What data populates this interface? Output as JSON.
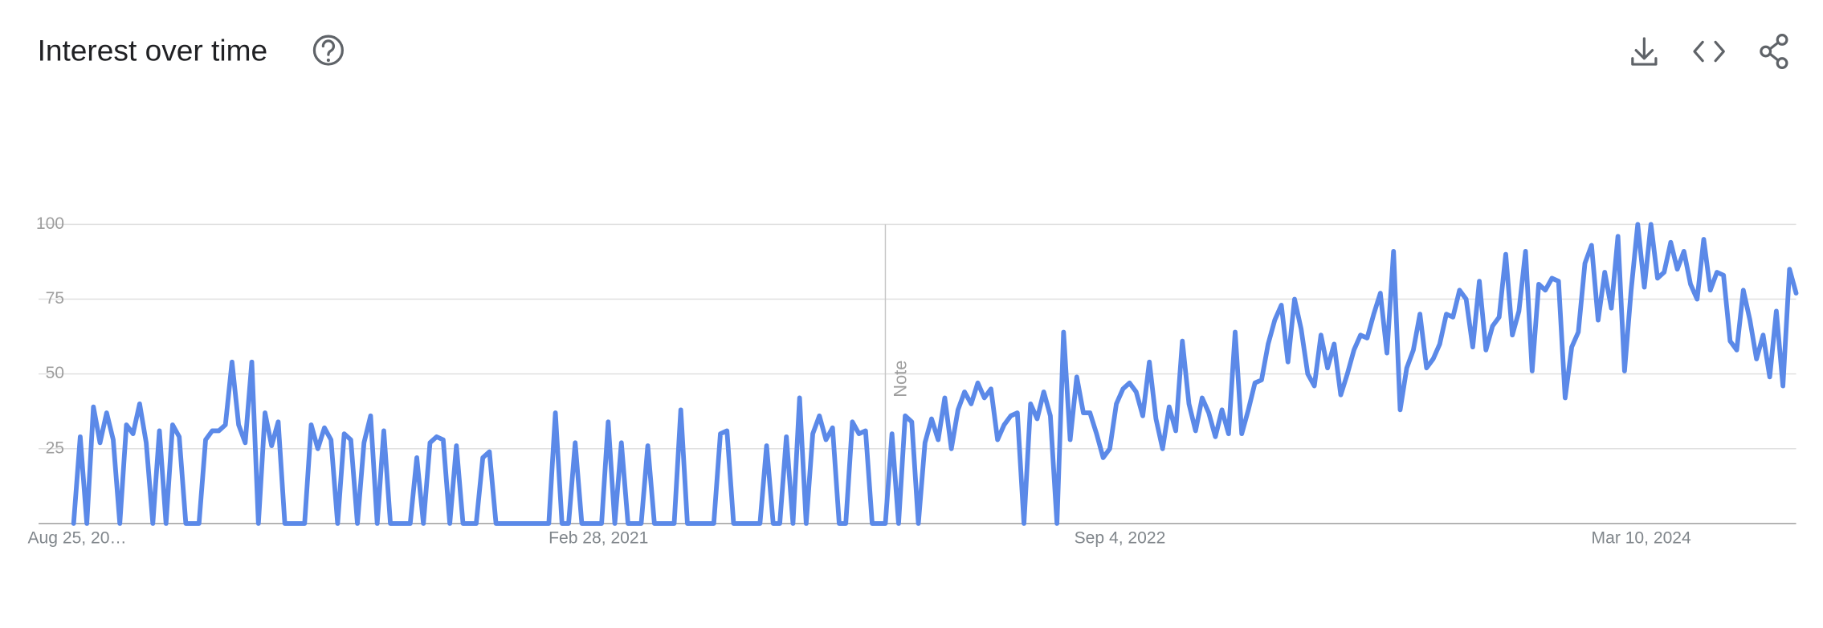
{
  "chart_data": {
    "type": "line",
    "title": "Interest over time",
    "annotation": "Note",
    "categories": [
      "Aug 25, 20…",
      null,
      null,
      null,
      null,
      null,
      null,
      null,
      null,
      null,
      null,
      null,
      null,
      null,
      null,
      null,
      null,
      null,
      null,
      null,
      null,
      null,
      null,
      null,
      null,
      null,
      null,
      null,
      null,
      null,
      null,
      null,
      null,
      null,
      null,
      null,
      null,
      null,
      null,
      null,
      null,
      null,
      null,
      null,
      null,
      null,
      null,
      null,
      null,
      null,
      null,
      null,
      null,
      null,
      null,
      null,
      null,
      null,
      null,
      null,
      null,
      null,
      null,
      null,
      null,
      null,
      null,
      null,
      null,
      null,
      null,
      null,
      null,
      null,
      null,
      null,
      null,
      null,
      null,
      "Feb 28, 2021",
      null,
      null,
      null,
      null,
      null,
      null,
      null,
      null,
      null,
      null,
      null,
      null,
      null,
      null,
      null,
      null,
      null,
      null,
      null,
      null,
      null,
      null,
      null,
      null,
      null,
      null,
      null,
      null,
      null,
      null,
      null,
      null,
      null,
      null,
      null,
      null,
      null,
      null,
      null,
      null,
      null,
      null,
      null,
      null,
      null,
      null,
      null,
      null,
      null,
      null,
      null,
      null,
      null,
      null,
      null,
      null,
      null,
      null,
      null,
      null,
      null,
      null,
      null,
      null,
      null,
      null,
      null,
      null,
      null,
      null,
      null,
      null,
      null,
      null,
      null,
      null,
      null,
      null,
      "Sep 4, 2022",
      null,
      null,
      null,
      null,
      null,
      null,
      null,
      null,
      null,
      null,
      null,
      null,
      null,
      null,
      null,
      null,
      null,
      null,
      null,
      null,
      null,
      null,
      null,
      null,
      null,
      null,
      null,
      null,
      null,
      null,
      null,
      null,
      null,
      null,
      null,
      null,
      null,
      null,
      null,
      null,
      null,
      null,
      null,
      null,
      null,
      null,
      null,
      null,
      null,
      null,
      null,
      null,
      null,
      null,
      null,
      null,
      null,
      null,
      null,
      null,
      null,
      null,
      null,
      null,
      null,
      null,
      null,
      null,
      null,
      null,
      null,
      null,
      null,
      null,
      null,
      null,
      null,
      null,
      "Mar 10, 2024",
      null,
      null,
      null,
      null,
      null,
      null,
      null,
      null,
      null,
      null,
      null,
      null,
      null,
      null,
      null,
      null,
      null,
      null,
      null,
      null,
      null,
      null,
      null,
      null
    ],
    "values": [
      0,
      29,
      0,
      39,
      27,
      37,
      28,
      0,
      33,
      30,
      40,
      27,
      0,
      31,
      0,
      33,
      29,
      0,
      0,
      0,
      28,
      31,
      31,
      33,
      54,
      33,
      27,
      54,
      0,
      37,
      26,
      34,
      0,
      0,
      0,
      0,
      33,
      25,
      32,
      28,
      0,
      30,
      28,
      0,
      27,
      36,
      0,
      31,
      0,
      0,
      0,
      0,
      22,
      0,
      27,
      29,
      28,
      0,
      26,
      0,
      0,
      0,
      22,
      24,
      0,
      0,
      0,
      0,
      0,
      0,
      0,
      0,
      0,
      37,
      0,
      0,
      27,
      0,
      0,
      0,
      0,
      34,
      0,
      27,
      0,
      0,
      0,
      26,
      0,
      0,
      0,
      0,
      38,
      0,
      0,
      0,
      0,
      0,
      30,
      31,
      0,
      0,
      0,
      0,
      0,
      26,
      0,
      0,
      29,
      0,
      42,
      0,
      30,
      36,
      28,
      32,
      0,
      0,
      34,
      30,
      31,
      0,
      0,
      0,
      30,
      0,
      36,
      34,
      0,
      27,
      35,
      28,
      42,
      25,
      38,
      44,
      40,
      47,
      42,
      45,
      28,
      33,
      36,
      37,
      0,
      40,
      35,
      44,
      36,
      0,
      64,
      28,
      49,
      37,
      37,
      30,
      22,
      25,
      40,
      45,
      47,
      44,
      36,
      54,
      35,
      25,
      39,
      31,
      61,
      40,
      31,
      42,
      37,
      29,
      38,
      30,
      64,
      30,
      38,
      47,
      48,
      60,
      68,
      73,
      54,
      75,
      65,
      50,
      46,
      63,
      52,
      60,
      43,
      50,
      58,
      63,
      62,
      70,
      77,
      57,
      91,
      38,
      52,
      58,
      70,
      52,
      55,
      60,
      70,
      69,
      78,
      75,
      59,
      81,
      58,
      66,
      69,
      90,
      63,
      71,
      91,
      51,
      80,
      78,
      82,
      81,
      42,
      59,
      64,
      87,
      93,
      68,
      84,
      72,
      96,
      51,
      78,
      100,
      79,
      100,
      82,
      84,
      94,
      85,
      91,
      80,
      75,
      95,
      78,
      84,
      83,
      61,
      58,
      78,
      68,
      55,
      63,
      49,
      71,
      46,
      85,
      77
    ],
    "color": "#5b89e8",
    "ylim": [
      0,
      100
    ],
    "yticks": [
      25,
      50,
      75,
      100
    ],
    "grid": true
  }
}
